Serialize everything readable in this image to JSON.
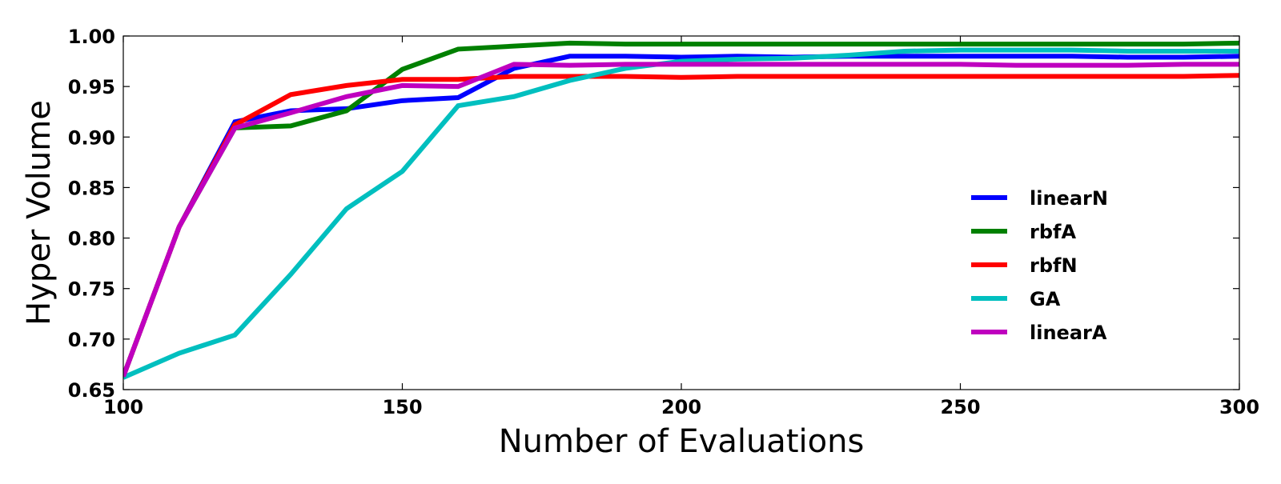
{
  "chart_data": {
    "type": "line",
    "title": "",
    "xlabel": "Number of Evaluations",
    "ylabel": "Hyper Volume",
    "xlim": [
      100,
      300
    ],
    "ylim": [
      0.65,
      1.0
    ],
    "xticks": [
      100,
      150,
      200,
      250,
      300
    ],
    "xtick_labels": [
      "100",
      "150",
      "200",
      "250",
      "300"
    ],
    "yticks": [
      0.65,
      0.7,
      0.75,
      0.8,
      0.85,
      0.9,
      0.95,
      1.0
    ],
    "ytick_labels": [
      "0.65",
      "0.70",
      "0.75",
      "0.80",
      "0.85",
      "0.90",
      "0.95",
      "1.00"
    ],
    "grid": false,
    "legend_position": "right",
    "x": [
      100,
      110,
      120,
      130,
      140,
      150,
      160,
      170,
      180,
      190,
      200,
      210,
      220,
      230,
      240,
      250,
      260,
      270,
      280,
      290,
      300
    ],
    "series": [
      {
        "name": "linearN",
        "color": "#0000ff",
        "values": [
          0.663,
          0.811,
          0.915,
          0.926,
          0.928,
          0.936,
          0.939,
          0.968,
          0.98,
          0.98,
          0.979,
          0.98,
          0.979,
          0.98,
          0.98,
          0.98,
          0.98,
          0.98,
          0.979,
          0.979,
          0.98
        ]
      },
      {
        "name": "rbfA",
        "color": "#008000",
        "values": [
          0.663,
          0.811,
          0.909,
          0.911,
          0.926,
          0.967,
          0.987,
          0.99,
          0.993,
          0.992,
          0.992,
          0.992,
          0.992,
          0.992,
          0.992,
          0.992,
          0.992,
          0.992,
          0.992,
          0.992,
          0.993
        ]
      },
      {
        "name": "rbfN",
        "color": "#ff0000",
        "values": [
          0.663,
          0.811,
          0.912,
          0.942,
          0.951,
          0.957,
          0.957,
          0.96,
          0.96,
          0.96,
          0.959,
          0.96,
          0.96,
          0.96,
          0.96,
          0.96,
          0.96,
          0.96,
          0.96,
          0.96,
          0.961
        ]
      },
      {
        "name": "GA",
        "color": "#00bfbf",
        "values": [
          0.662,
          0.686,
          0.704,
          0.764,
          0.829,
          0.866,
          0.931,
          0.94,
          0.956,
          0.968,
          0.975,
          0.977,
          0.978,
          0.981,
          0.985,
          0.986,
          0.986,
          0.986,
          0.985,
          0.985,
          0.985
        ]
      },
      {
        "name": "linearA",
        "color": "#bf00bf",
        "values": [
          0.663,
          0.811,
          0.909,
          0.924,
          0.94,
          0.951,
          0.95,
          0.972,
          0.971,
          0.972,
          0.972,
          0.972,
          0.972,
          0.972,
          0.972,
          0.972,
          0.971,
          0.971,
          0.971,
          0.972,
          0.972
        ]
      }
    ]
  }
}
